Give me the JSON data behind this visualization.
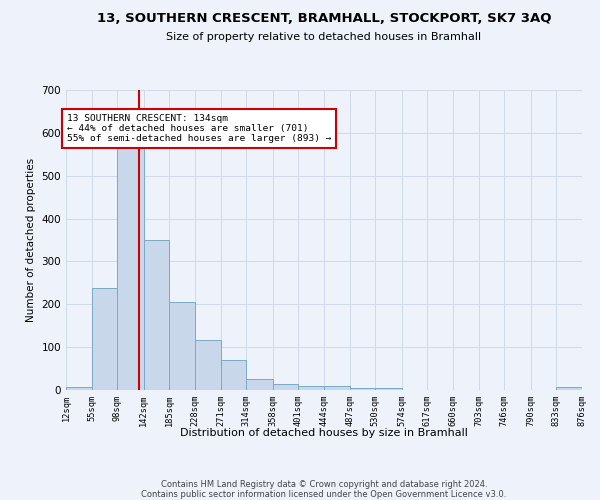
{
  "title": "13, SOUTHERN CRESCENT, BRAMHALL, STOCKPORT, SK7 3AQ",
  "subtitle": "Size of property relative to detached houses in Bramhall",
  "xlabel": "Distribution of detached houses by size in Bramhall",
  "ylabel": "Number of detached properties",
  "bin_edges": [
    12,
    55,
    98,
    142,
    185,
    228,
    271,
    314,
    358,
    401,
    444,
    487,
    530,
    574,
    617,
    660,
    703,
    746,
    790,
    833,
    876
  ],
  "bar_heights": [
    8,
    237,
    590,
    350,
    206,
    117,
    71,
    25,
    14,
    10,
    10,
    5,
    5,
    0,
    0,
    0,
    0,
    0,
    0,
    8
  ],
  "bar_color": "#c8d8ea",
  "bar_edge_color": "#7aaac8",
  "grid_color": "#d0daea",
  "property_size": 134,
  "vline_color": "#cc0000",
  "annotation_text": "13 SOUTHERN CRESCENT: 134sqm\n← 44% of detached houses are smaller (701)\n55% of semi-detached houses are larger (893) →",
  "annotation_box_color": "#ffffff",
  "annotation_box_edge": "#cc0000",
  "ylim": [
    0,
    700
  ],
  "yticks": [
    0,
    100,
    200,
    300,
    400,
    500,
    600,
    700
  ],
  "footer_line1": "Contains HM Land Registry data © Crown copyright and database right 2024.",
  "footer_line2": "Contains public sector information licensed under the Open Government Licence v3.0.",
  "background_color": "#eef2fb"
}
